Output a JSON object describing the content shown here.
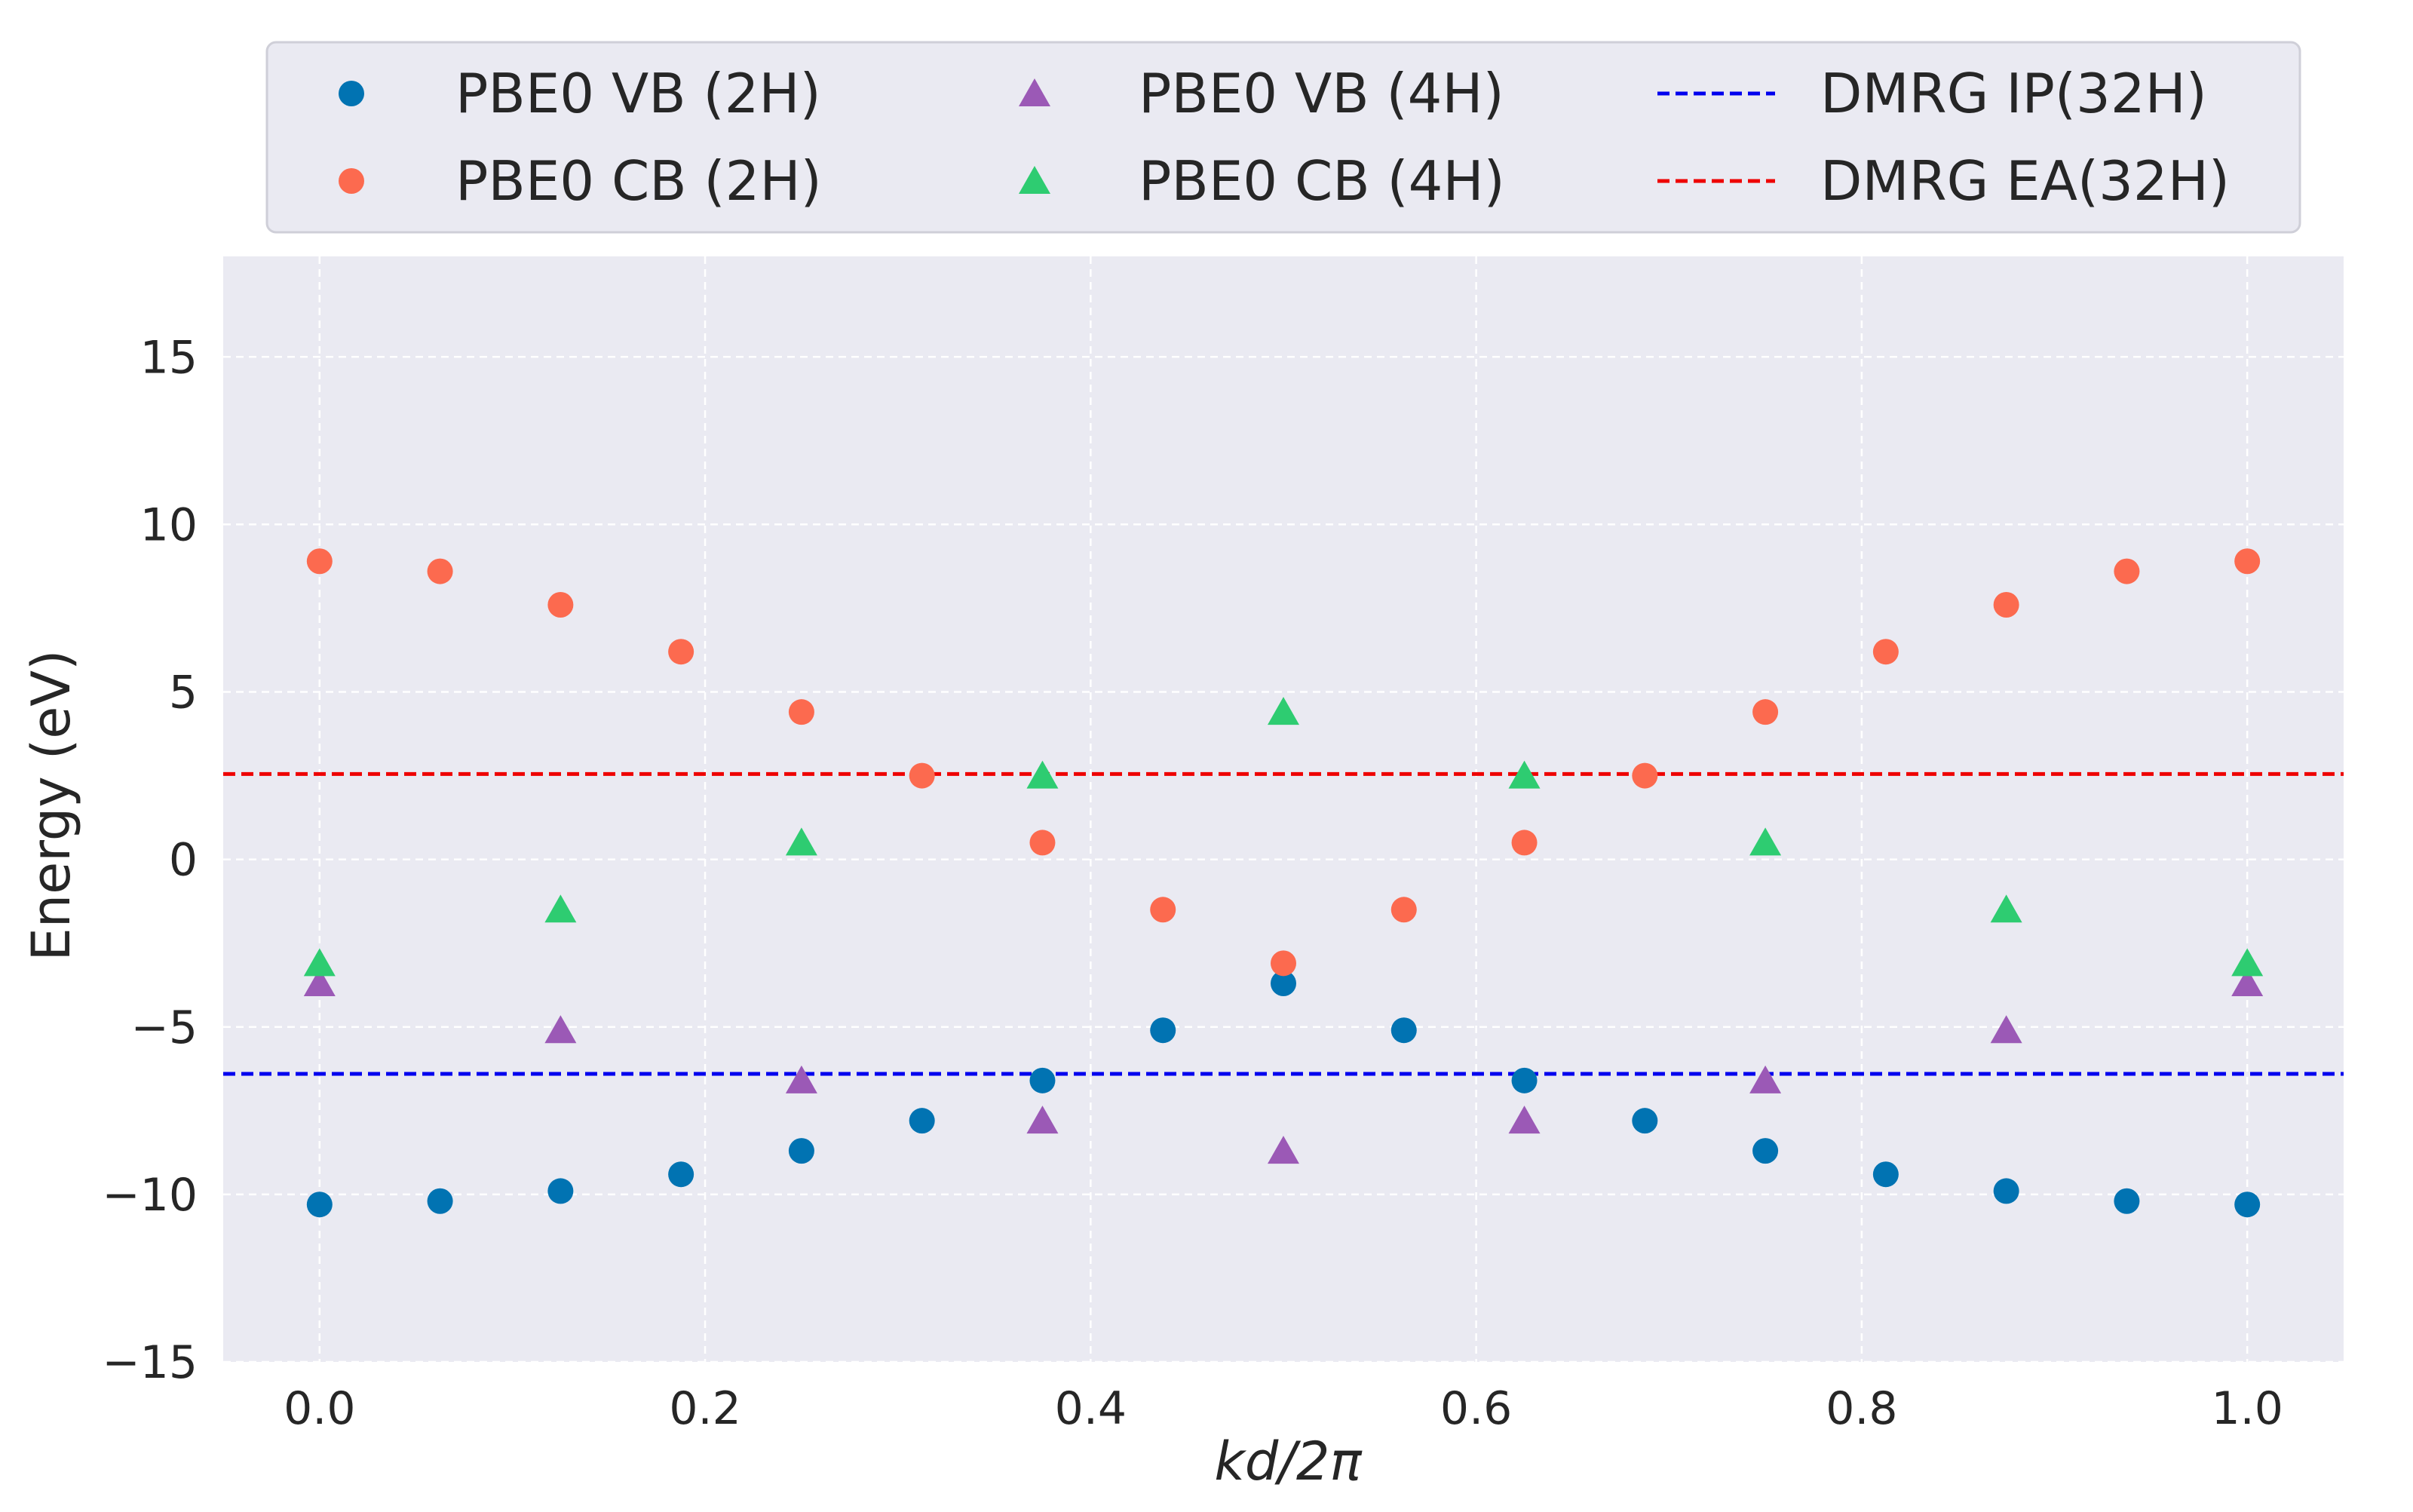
{
  "chart_data": {
    "type": "scatter",
    "xlabel": "kd/2π",
    "ylabel": "Energy (eV)",
    "xlim": [
      -0.05,
      1.05
    ],
    "ylim": [
      -15,
      18
    ],
    "x_ticks": [
      0.0,
      0.2,
      0.4,
      0.6,
      0.8,
      1.0
    ],
    "x_tick_labels": [
      "0.0",
      "0.2",
      "0.4",
      "0.6",
      "0.8",
      "1.0"
    ],
    "y_ticks": [
      -15,
      -10,
      -5,
      0,
      5,
      10,
      15
    ],
    "y_tick_labels": [
      "−15",
      "−10",
      "−5",
      "0",
      "5",
      "10",
      "15"
    ],
    "grid": true,
    "legend_position": "top (outside, above plot)",
    "legend_columns": 3,
    "series": [
      {
        "name": "PBE0 VB (2H)",
        "marker": "circle",
        "color": "#0173b2",
        "points": [
          [
            0.0,
            -10.3
          ],
          [
            0.0625,
            -10.2
          ],
          [
            0.125,
            -9.9
          ],
          [
            0.1875,
            -9.4
          ],
          [
            0.25,
            -8.7
          ],
          [
            0.3125,
            -7.8
          ],
          [
            0.375,
            -6.6
          ],
          [
            0.4375,
            -5.1
          ],
          [
            0.5,
            -3.7
          ],
          [
            0.5625,
            -5.1
          ],
          [
            0.625,
            -6.6
          ],
          [
            0.6875,
            -7.8
          ],
          [
            0.75,
            -8.7
          ],
          [
            0.8125,
            -9.4
          ],
          [
            0.875,
            -9.9
          ],
          [
            0.9375,
            -10.2
          ],
          [
            1.0,
            -10.3
          ]
        ]
      },
      {
        "name": "PBE0 CB (2H)",
        "marker": "circle",
        "color": "#fc6a4f",
        "points": [
          [
            0.0,
            8.9
          ],
          [
            0.0625,
            8.6
          ],
          [
            0.125,
            7.6
          ],
          [
            0.1875,
            6.2
          ],
          [
            0.25,
            4.4
          ],
          [
            0.3125,
            2.5
          ],
          [
            0.375,
            0.5
          ],
          [
            0.4375,
            -1.5
          ],
          [
            0.5,
            -3.1
          ],
          [
            0.5625,
            -1.5
          ],
          [
            0.625,
            0.5
          ],
          [
            0.6875,
            2.5
          ],
          [
            0.75,
            4.4
          ],
          [
            0.8125,
            6.2
          ],
          [
            0.875,
            7.6
          ],
          [
            0.9375,
            8.6
          ],
          [
            1.0,
            8.9
          ]
        ]
      },
      {
        "name": "PBE0 VB (4H)",
        "marker": "triangle",
        "color": "#9b59b6",
        "points": [
          [
            0.0,
            -3.7
          ],
          [
            0.125,
            -5.1
          ],
          [
            0.25,
            -6.6
          ],
          [
            0.375,
            -7.8
          ],
          [
            0.5,
            -8.7
          ],
          [
            0.625,
            -7.8
          ],
          [
            0.75,
            -6.6
          ],
          [
            0.875,
            -5.1
          ],
          [
            1.0,
            -3.7
          ]
        ]
      },
      {
        "name": "PBE0 CB (4H)",
        "marker": "triangle",
        "color": "#2ecc71",
        "points": [
          [
            0.0,
            -3.1
          ],
          [
            0.125,
            -1.5
          ],
          [
            0.25,
            0.5
          ],
          [
            0.375,
            2.5
          ],
          [
            0.5,
            4.4
          ],
          [
            0.625,
            2.5
          ],
          [
            0.75,
            0.5
          ],
          [
            0.875,
            -1.5
          ],
          [
            1.0,
            -3.1
          ]
        ]
      }
    ],
    "hlines": [
      {
        "name": "DMRG IP(32H)",
        "y": -6.4,
        "color": "#0000ee",
        "style": "dashed"
      },
      {
        "name": "DMRG EA(32H)",
        "y": 2.55,
        "color": "#ee0000",
        "style": "dashed"
      }
    ],
    "plot_background": "#eaeaf2"
  }
}
